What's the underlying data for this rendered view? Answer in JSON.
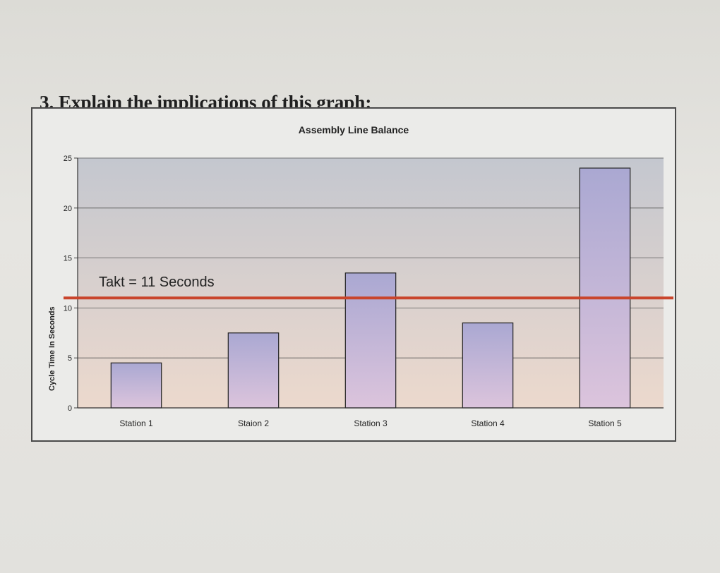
{
  "question": "3. Explain the implications of this graph:",
  "chart_data": {
    "type": "bar",
    "title": "Assembly Line Balance",
    "xlabel": "",
    "ylabel": "Cycle Time In Seconds",
    "categories": [
      "Station 1",
      "Staion 2",
      "Station 3",
      "Station 4",
      "Station 5"
    ],
    "values": [
      4.5,
      7.5,
      13.5,
      8.5,
      24
    ],
    "ylim": [
      0,
      25
    ],
    "yticks": [
      0,
      5,
      10,
      15,
      20,
      25
    ],
    "grid": true,
    "reference_line": {
      "value": 11,
      "label": "Takt = 11 Seconds",
      "color": "#c9452c"
    },
    "colors": {
      "bar_fill": "#dcc4dc",
      "bar_top_fill": "#aaa8d2",
      "bar_stroke": "#222222",
      "plot_top": "#c4c7cf",
      "plot_bottom": "#ecd9cd"
    }
  }
}
